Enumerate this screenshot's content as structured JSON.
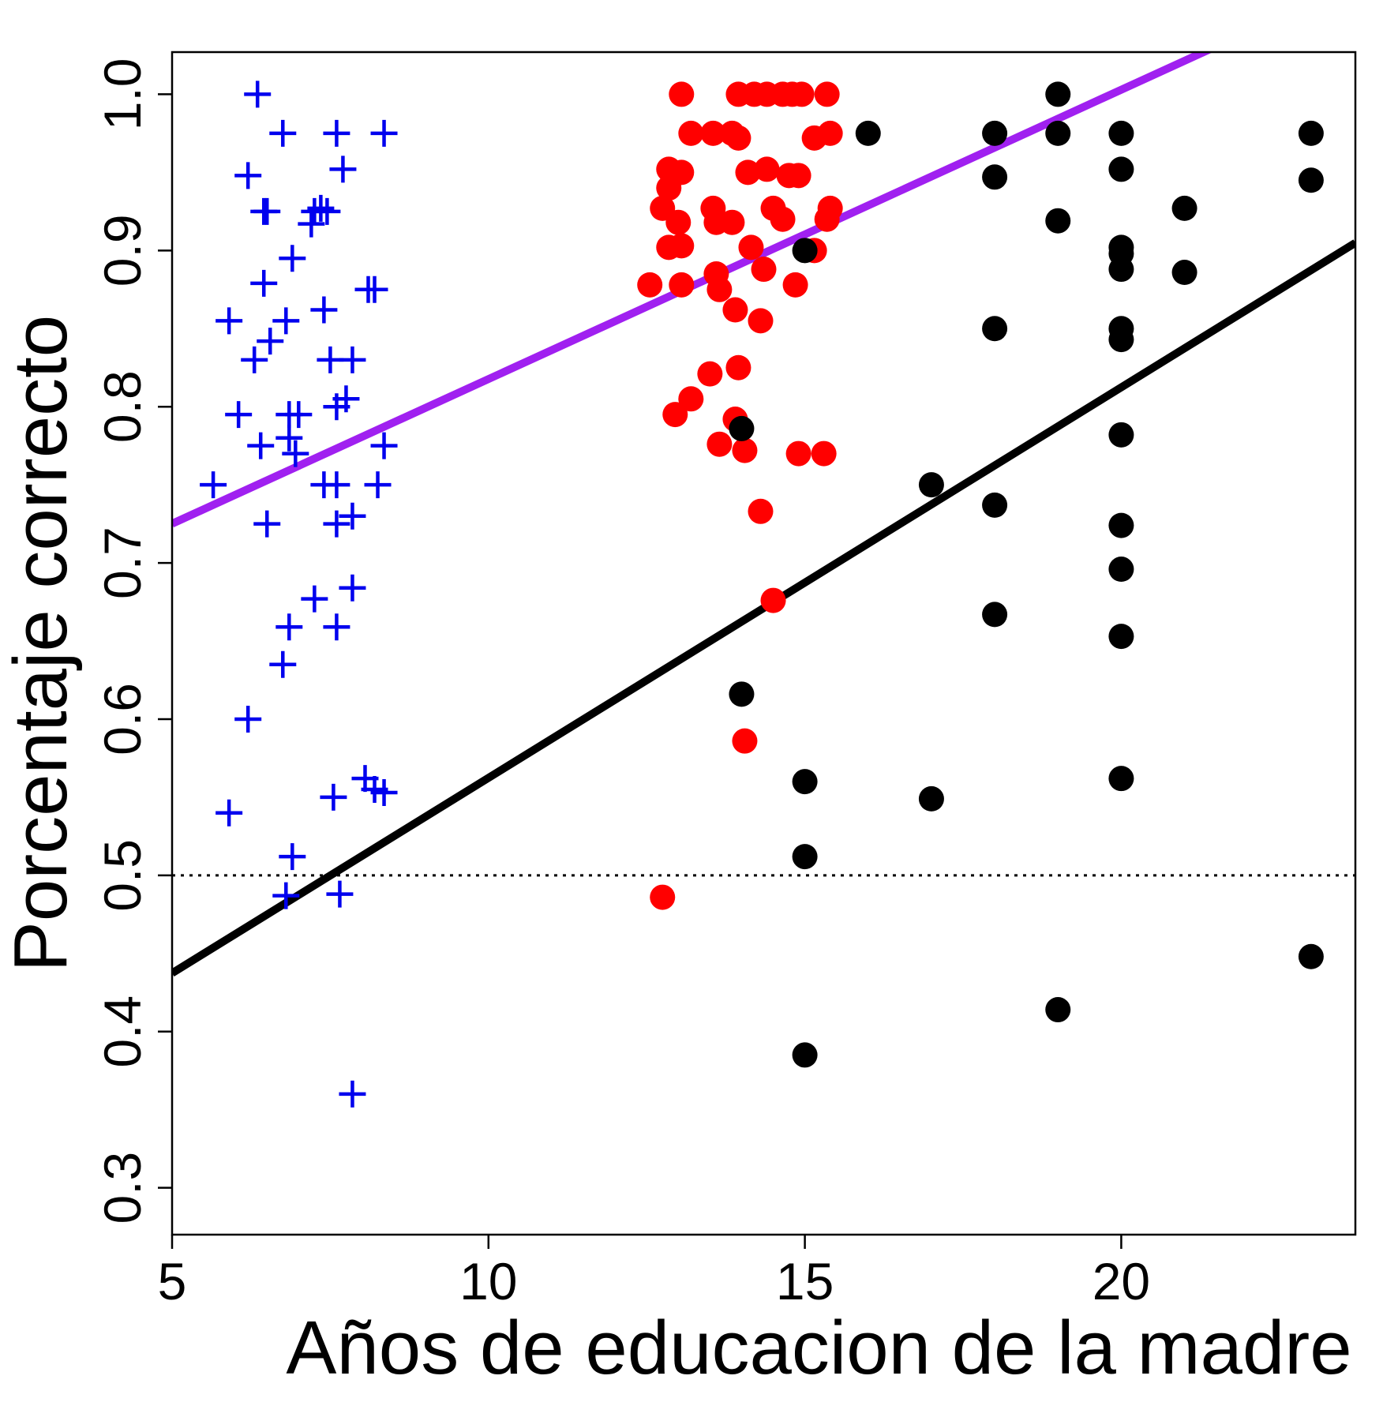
{
  "chart_data": {
    "type": "scatter",
    "title": "",
    "xlabel": "Años de educacion de la madre",
    "ylabel": "Porcentaje correcto",
    "xlim": [
      5,
      23.7
    ],
    "ylim": [
      0.27,
      1.027
    ],
    "x_ticks": [
      5,
      10,
      15,
      20
    ],
    "y_ticks": [
      0.3,
      0.4,
      0.5,
      0.6,
      0.7,
      0.8,
      0.9,
      1.0
    ],
    "x_tick_labels": [
      "5",
      "10",
      "15",
      "20"
    ],
    "y_tick_labels": [
      "0.3",
      "0.4",
      "0.5",
      "0.6",
      "0.7",
      "0.8",
      "0.9",
      "1.0"
    ],
    "grid": false,
    "legend": "none",
    "colors": {
      "blue_series": "#0000ee",
      "red_series": "#ff0000",
      "black_series": "#000000",
      "purple_fit": "#a020f0",
      "black_fit": "#000000",
      "reference_line": "#000000"
    },
    "series": [
      {
        "marker": "plus",
        "color": "#0000ee",
        "points": [
          [
            6.35,
            1.0
          ],
          [
            6.75,
            0.975
          ],
          [
            7.6,
            0.975
          ],
          [
            8.35,
            0.975
          ],
          [
            6.2,
            0.948
          ],
          [
            7.7,
            0.952
          ],
          [
            6.45,
            0.925
          ],
          [
            6.5,
            0.925
          ],
          [
            7.25,
            0.925
          ],
          [
            7.35,
            0.927
          ],
          [
            7.45,
            0.925
          ],
          [
            7.2,
            0.917
          ],
          [
            6.9,
            0.895
          ],
          [
            6.45,
            0.879
          ],
          [
            8.1,
            0.875
          ],
          [
            8.2,
            0.875
          ],
          [
            5.9,
            0.855
          ],
          [
            6.8,
            0.855
          ],
          [
            7.4,
            0.862
          ],
          [
            6.55,
            0.842
          ],
          [
            6.3,
            0.83
          ],
          [
            7.5,
            0.83
          ],
          [
            7.85,
            0.83
          ],
          [
            7.6,
            0.8
          ],
          [
            7.75,
            0.805
          ],
          [
            6.05,
            0.795
          ],
          [
            6.85,
            0.795
          ],
          [
            7.0,
            0.795
          ],
          [
            6.4,
            0.775
          ],
          [
            6.85,
            0.78
          ],
          [
            6.95,
            0.77
          ],
          [
            8.35,
            0.775
          ],
          [
            5.65,
            0.75
          ],
          [
            7.4,
            0.75
          ],
          [
            7.6,
            0.75
          ],
          [
            8.25,
            0.75
          ],
          [
            6.5,
            0.725
          ],
          [
            7.6,
            0.725
          ],
          [
            7.85,
            0.73
          ],
          [
            7.25,
            0.677
          ],
          [
            7.85,
            0.684
          ],
          [
            6.85,
            0.659
          ],
          [
            7.6,
            0.659
          ],
          [
            6.75,
            0.635
          ],
          [
            6.2,
            0.6
          ],
          [
            8.05,
            0.562
          ],
          [
            8.2,
            0.555
          ],
          [
            8.35,
            0.553
          ],
          [
            7.55,
            0.55
          ],
          [
            5.9,
            0.54
          ],
          [
            6.9,
            0.512
          ],
          [
            6.8,
            0.487
          ],
          [
            7.65,
            0.488
          ],
          [
            7.85,
            0.36
          ]
        ]
      },
      {
        "marker": "circle",
        "color": "#ff0000",
        "points": [
          [
            13.05,
            1.0
          ],
          [
            13.95,
            1.0
          ],
          [
            14.2,
            1.0
          ],
          [
            14.4,
            1.0
          ],
          [
            14.65,
            1.0
          ],
          [
            14.8,
            1.0
          ],
          [
            14.95,
            1.0
          ],
          [
            15.35,
            1.0
          ],
          [
            13.2,
            0.975
          ],
          [
            13.55,
            0.975
          ],
          [
            13.85,
            0.975
          ],
          [
            13.95,
            0.972
          ],
          [
            15.15,
            0.972
          ],
          [
            15.4,
            0.975
          ],
          [
            12.85,
            0.952
          ],
          [
            13.05,
            0.95
          ],
          [
            14.1,
            0.95
          ],
          [
            14.4,
            0.952
          ],
          [
            14.75,
            0.948
          ],
          [
            14.9,
            0.948
          ],
          [
            12.85,
            0.94
          ],
          [
            12.75,
            0.927
          ],
          [
            13.0,
            0.918
          ],
          [
            13.55,
            0.927
          ],
          [
            13.6,
            0.918
          ],
          [
            13.85,
            0.918
          ],
          [
            14.5,
            0.927
          ],
          [
            14.65,
            0.92
          ],
          [
            15.4,
            0.927
          ],
          [
            15.35,
            0.92
          ],
          [
            12.85,
            0.902
          ],
          [
            13.05,
            0.903
          ],
          [
            14.15,
            0.902
          ],
          [
            15.15,
            0.9
          ],
          [
            12.55,
            0.878
          ],
          [
            13.05,
            0.878
          ],
          [
            13.65,
            0.875
          ],
          [
            13.6,
            0.885
          ],
          [
            14.35,
            0.888
          ],
          [
            14.85,
            0.878
          ],
          [
            13.9,
            0.862
          ],
          [
            14.3,
            0.855
          ],
          [
            13.5,
            0.821
          ],
          [
            13.95,
            0.825
          ],
          [
            13.2,
            0.805
          ],
          [
            12.95,
            0.795
          ],
          [
            13.9,
            0.792
          ],
          [
            13.65,
            0.776
          ],
          [
            14.05,
            0.772
          ],
          [
            14.9,
            0.77
          ],
          [
            15.3,
            0.77
          ],
          [
            14.3,
            0.733
          ],
          [
            14.5,
            0.676
          ],
          [
            14.05,
            0.586
          ],
          [
            12.75,
            0.486
          ]
        ]
      },
      {
        "marker": "circle",
        "color": "#000000",
        "points": [
          [
            19.0,
            1.0
          ],
          [
            16.0,
            0.975
          ],
          [
            18.0,
            0.975
          ],
          [
            19.0,
            0.975
          ],
          [
            20.0,
            0.975
          ],
          [
            23.0,
            0.975
          ],
          [
            18.0,
            0.947
          ],
          [
            20.0,
            0.952
          ],
          [
            23.0,
            0.945
          ],
          [
            21.0,
            0.927
          ],
          [
            19.0,
            0.919
          ],
          [
            20.0,
            0.902
          ],
          [
            20.0,
            0.898
          ],
          [
            15.0,
            0.9
          ],
          [
            20.0,
            0.888
          ],
          [
            21.0,
            0.886
          ],
          [
            18.0,
            0.85
          ],
          [
            20.0,
            0.85
          ],
          [
            20.0,
            0.843
          ],
          [
            14.0,
            0.786
          ],
          [
            20.0,
            0.782
          ],
          [
            17.0,
            0.75
          ],
          [
            18.0,
            0.737
          ],
          [
            20.0,
            0.724
          ],
          [
            20.0,
            0.696
          ],
          [
            18.0,
            0.667
          ],
          [
            20.0,
            0.653
          ],
          [
            14.0,
            0.616
          ],
          [
            20.0,
            0.562
          ],
          [
            15.0,
            0.56
          ],
          [
            17.0,
            0.549
          ],
          [
            15.0,
            0.512
          ],
          [
            23.0,
            0.448
          ],
          [
            19.0,
            0.414
          ],
          [
            15.0,
            0.385
          ]
        ]
      }
    ],
    "lines": [
      {
        "kind": "fit",
        "color": "#a020f0",
        "intercept": 0.6325,
        "slope": 0.01852
      },
      {
        "kind": "fit",
        "color": "#000000",
        "intercept": 0.3124,
        "slope": 0.025
      },
      {
        "kind": "reference",
        "style": "dotted",
        "color": "#000000",
        "y": 0.5
      }
    ]
  }
}
